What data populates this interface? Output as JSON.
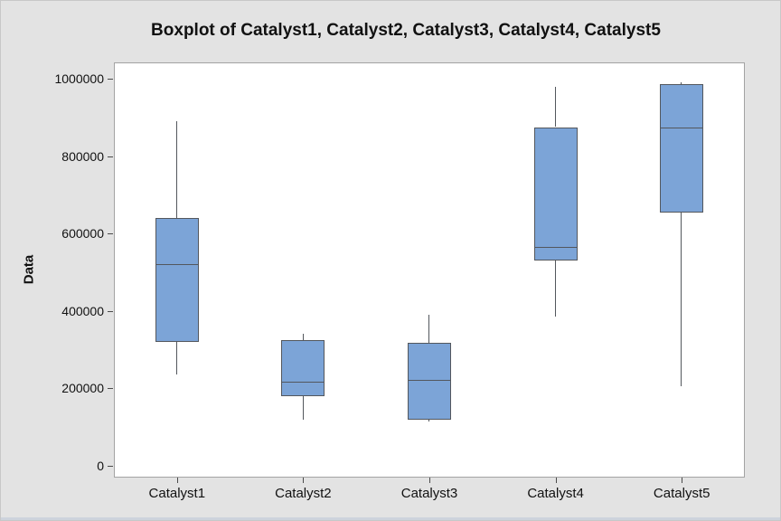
{
  "window": {
    "background": "#e3e3e3",
    "bottom_strip_color": "#cdd3dc"
  },
  "chart_data": {
    "type": "boxplot",
    "title": "Boxplot of Catalyst1, Catalyst2, Catalyst3, Catalyst4, Catalyst5",
    "ylabel": "Data",
    "xlabel": "",
    "categories": [
      "Catalyst1",
      "Catalyst2",
      "Catalyst3",
      "Catalyst4",
      "Catalyst5"
    ],
    "series": [
      {
        "name": "Catalyst1",
        "whisker_low": 235000,
        "q1": 320000,
        "median": 520000,
        "q3": 640000,
        "whisker_high": 890000
      },
      {
        "name": "Catalyst2",
        "whisker_low": 120000,
        "q1": 180000,
        "median": 218000,
        "q3": 325000,
        "whisker_high": 340000
      },
      {
        "name": "Catalyst3",
        "whisker_low": 115000,
        "q1": 120000,
        "median": 222000,
        "q3": 318000,
        "whisker_high": 390000
      },
      {
        "name": "Catalyst4",
        "whisker_low": 385000,
        "q1": 530000,
        "median": 565000,
        "q3": 875000,
        "whisker_high": 980000
      },
      {
        "name": "Catalyst5",
        "whisker_low": 205000,
        "q1": 655000,
        "median": 875000,
        "q3": 985000,
        "whisker_high": 990000
      }
    ],
    "ylim": [
      0,
      1000000
    ],
    "yticks": [
      0,
      200000,
      400000,
      600000,
      800000,
      1000000
    ],
    "ytick_labels": [
      "0",
      "200000",
      "400000",
      "600000",
      "800000",
      "1000000"
    ],
    "grid": false,
    "legend": false,
    "colors": {
      "box_fill": "#7CA4D7",
      "box_border": "#53575D",
      "whisker": "#53575D",
      "median": "#53575D",
      "plot_border": "#A3A3A3",
      "plot_bg": "#FFFFFF",
      "text": "#111111"
    }
  }
}
